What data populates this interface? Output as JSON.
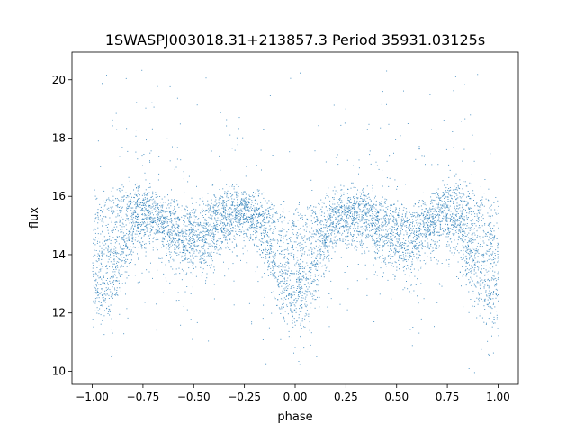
{
  "chart_data": {
    "type": "scatter",
    "title": "1SWASPJ003018.31+213857.3 Period 35931.03125s",
    "xlabel": "phase",
    "ylabel": "flux",
    "xlim": [
      -1.1,
      1.1
    ],
    "ylim": [
      9.55,
      20.95
    ],
    "x_ticks": [
      -1.0,
      -0.75,
      -0.5,
      -0.25,
      0.0,
      0.25,
      0.5,
      0.75,
      1.0
    ],
    "x_tick_labels": [
      "−1.00",
      "−0.75",
      "−0.50",
      "−0.25",
      "0.00",
      "0.25",
      "0.50",
      "0.75",
      "1.00"
    ],
    "y_ticks": [
      10,
      12,
      14,
      16,
      18,
      20
    ],
    "y_tick_labels": [
      "10",
      "12",
      "14",
      "16",
      "18",
      "20"
    ],
    "grid": false,
    "marker_color": "#1f77b4",
    "light_curve": {
      "phase": [
        -1.0,
        -0.95,
        -0.9,
        -0.85,
        -0.8,
        -0.75,
        -0.7,
        -0.65,
        -0.6,
        -0.55,
        -0.5,
        -0.45,
        -0.4,
        -0.35,
        -0.3,
        -0.25,
        -0.2,
        -0.15,
        -0.1,
        -0.05,
        0.0,
        0.05,
        0.1,
        0.15,
        0.2,
        0.25,
        0.3,
        0.35,
        0.4,
        0.45,
        0.5,
        0.55,
        0.6,
        0.65,
        0.7,
        0.75,
        0.8,
        0.85,
        0.9,
        0.95,
        1.0
      ],
      "flux": [
        12.7,
        12.5,
        13.0,
        13.8,
        14.7,
        15.0,
        15.0,
        14.6,
        14.2,
        14.1,
        14.1,
        14.2,
        14.5,
        14.9,
        15.0,
        15.0,
        14.9,
        14.2,
        13.2,
        12.5,
        12.3,
        12.5,
        13.2,
        14.2,
        14.9,
        15.0,
        15.0,
        14.9,
        14.5,
        14.2,
        14.1,
        14.1,
        14.2,
        14.6,
        15.0,
        15.0,
        14.7,
        13.8,
        13.0,
        12.5,
        12.7
      ],
      "upper_envelope": [
        15.8,
        15.9,
        16.0,
        16.2,
        16.3,
        16.2,
        16.0,
        15.8,
        15.6,
        15.4,
        15.5,
        15.7,
        15.9,
        16.0,
        16.1,
        16.0,
        15.9,
        15.8,
        15.6,
        15.5,
        15.5,
        15.5,
        15.6,
        15.8,
        15.9,
        16.0,
        16.1,
        16.0,
        15.9,
        15.7,
        15.5,
        15.4,
        15.6,
        15.8,
        16.0,
        16.2,
        16.3,
        16.2,
        16.0,
        15.9,
        15.8
      ]
    }
  }
}
